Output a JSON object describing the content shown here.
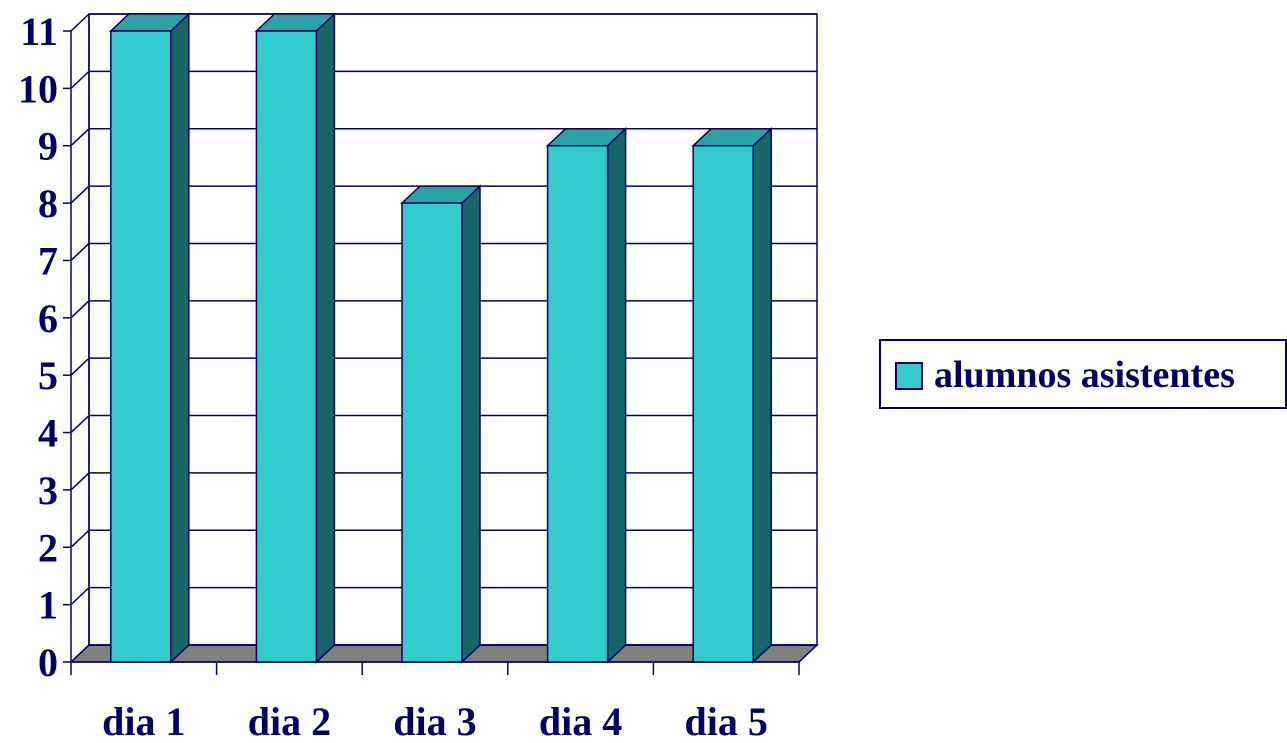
{
  "chart_data": {
    "type": "bar",
    "categories": [
      "dia 1",
      "dia 2",
      "dia 3",
      "dia 4",
      "dia 5"
    ],
    "series": [
      {
        "name": "alumnos asistentes",
        "values": [
          11,
          11,
          8,
          9,
          9
        ]
      }
    ],
    "title": "",
    "xlabel": "",
    "ylabel": "",
    "ylim": [
      0,
      11
    ],
    "yticks": [
      "0",
      "1",
      "2",
      "3",
      "4",
      "5",
      "6",
      "7",
      "8",
      "9",
      "10",
      "11"
    ],
    "grid": true,
    "three_d": true,
    "legend_position": "right",
    "colors": {
      "bar_front": "#33CCCC",
      "bar_side": "#1A6666",
      "bar_top": "#29A3A3",
      "floor": "#808080",
      "text": "#000066",
      "lines": "#000066"
    }
  }
}
